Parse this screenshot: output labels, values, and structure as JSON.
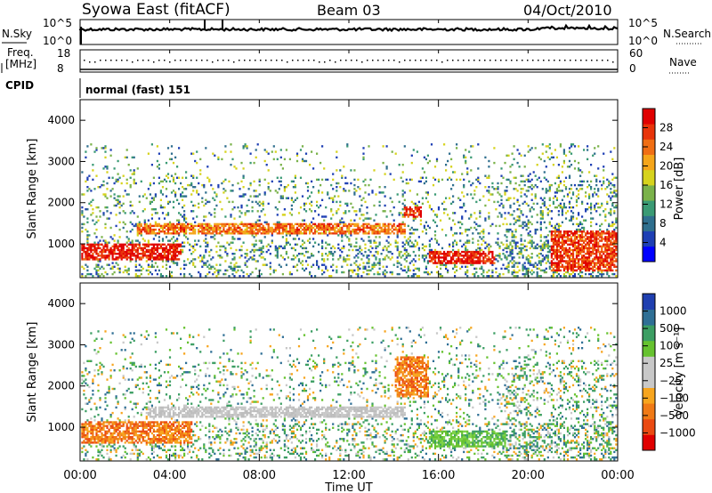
{
  "header": {
    "title": "Syowa East (fitACF)",
    "beam": "Beam 03",
    "date": "04/Oct/2010"
  },
  "ctrl": {
    "nsky_label": "N.Sky",
    "nsky_ticks": [
      "10^5",
      "10^0"
    ],
    "nsearch_label": "N.Search",
    "nsearch_ticks": [
      "10^5",
      "10^0"
    ],
    "freq_label_1": "Freq.",
    "freq_label_2": "[MHz]",
    "freq_ticks": [
      "18",
      "8"
    ],
    "nave_label": "Nave",
    "nave_ticks": [
      "60",
      "0"
    ],
    "cpid_label": "CPID",
    "cpid_value": "normal (fast) 151"
  },
  "chart_data": [
    {
      "type": "heatmap",
      "name": "power",
      "ylabel": "Slant Range [km]",
      "xlabel": "",
      "xlim_hours": [
        0,
        24
      ],
      "ylim_km": [
        180,
        4500
      ],
      "yticks": [
        "4000",
        "3000",
        "2000",
        "1000"
      ],
      "colorbar": {
        "label": "Power [dB]",
        "ticks": [
          "28",
          "24",
          "20",
          "16",
          "12",
          "8",
          "4"
        ],
        "range": [
          0,
          30
        ],
        "colors": [
          "#0000ff",
          "#1e3fb4",
          "#2f6f8e",
          "#3a9a74",
          "#7ab24a",
          "#d6d31d",
          "#f5a51a",
          "#f06e14",
          "#e8340a",
          "#e00000"
        ]
      },
      "features": [
        {
          "desc": "F-region band",
          "t": [
            2.5,
            14.5
          ],
          "r": [
            1200,
            1500
          ],
          "level": 21
        },
        {
          "desc": "near-range E echoes",
          "t": [
            0,
            4.5
          ],
          "r": [
            600,
            1000
          ],
          "level": 26
        },
        {
          "desc": "evening band",
          "t": [
            15.5,
            18.5
          ],
          "r": [
            500,
            800
          ],
          "level": 26
        },
        {
          "desc": "patch",
          "t": [
            14.4,
            15.2
          ],
          "r": [
            1600,
            1900
          ],
          "level": 25
        },
        {
          "desc": "late streaks",
          "t": [
            21,
            24
          ],
          "r": [
            300,
            1300
          ],
          "level": 24
        }
      ]
    },
    {
      "type": "heatmap",
      "name": "velocity",
      "ylabel": "Slant Range [km]",
      "xlabel": "Time UT",
      "xlim_hours": [
        0,
        24
      ],
      "xticks": [
        "00:00",
        "04:00",
        "08:00",
        "12:00",
        "16:00",
        "20:00",
        "00:00"
      ],
      "ylim_km": [
        180,
        4500
      ],
      "yticks": [
        "4000",
        "3000",
        "2000",
        "1000"
      ],
      "colorbar": {
        "label": "Velocity [m s⁻¹]",
        "ticks": [
          "1000",
          "500",
          "100",
          "25",
          "−25",
          "−100",
          "−500",
          "−1000"
        ],
        "colors": [
          "#e00000",
          "#ea4a12",
          "#f07a16",
          "#f7a51e",
          "#c8c8c8",
          "#c8c8c8",
          "#66c22f",
          "#3c9e63",
          "#2f6f95",
          "#1f3fb0"
        ]
      },
      "features": [
        {
          "desc": "F-region band (ground scatter)",
          "t": [
            3,
            14.5
          ],
          "r": [
            1200,
            1500
          ],
          "level": "gray"
        },
        {
          "desc": "near-range negative",
          "t": [
            0,
            5
          ],
          "r": [
            600,
            1100
          ],
          "level": "orange"
        },
        {
          "desc": "evening positive",
          "t": [
            15.5,
            19
          ],
          "r": [
            500,
            900
          ],
          "level": "green"
        },
        {
          "desc": "patch negative",
          "t": [
            14,
            15.5
          ],
          "r": [
            1700,
            2700
          ],
          "level": "orange"
        }
      ]
    }
  ]
}
